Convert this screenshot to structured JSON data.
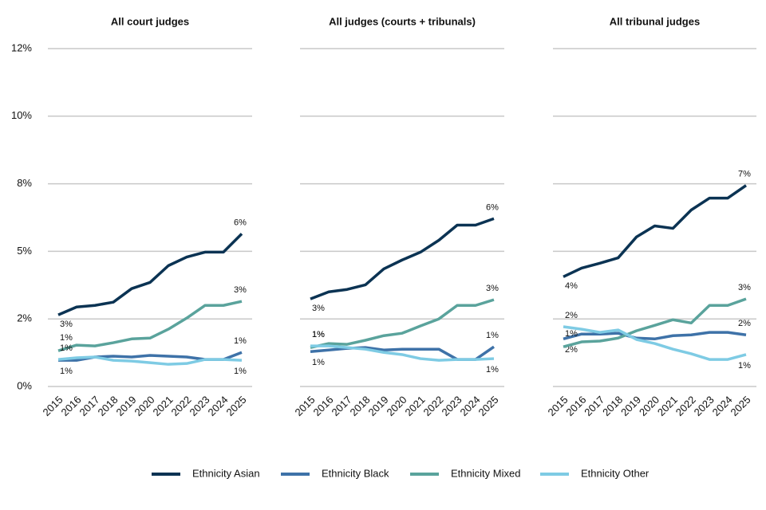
{
  "chart_data": [
    {
      "type": "line",
      "title": "All court judges",
      "categories": [
        "2015",
        "2016",
        "2017",
        "2018",
        "2019",
        "2020",
        "2021",
        "2022",
        "2023",
        "2024",
        "2025"
      ],
      "ylim": [
        0,
        12.5
      ],
      "yticks": [
        {
          "value": 0,
          "label": "0%"
        },
        {
          "value": 2.5,
          "label": "2%"
        },
        {
          "value": 5,
          "label": "5%"
        },
        {
          "value": 7.5,
          "label": "8%"
        },
        {
          "value": 10,
          "label": "10%"
        },
        {
          "value": 12.5,
          "label": "12%"
        }
      ],
      "grid": true,
      "series": [
        {
          "name": "Ethnicity Asian",
          "color": "#0b3353",
          "values": [
            2.65,
            2.94,
            3.0,
            3.12,
            3.62,
            3.85,
            4.47,
            4.79,
            4.97,
            4.97,
            5.65
          ],
          "value_labels": [
            "3%",
            null,
            null,
            null,
            null,
            null,
            null,
            null,
            null,
            null,
            "6%"
          ]
        },
        {
          "name": "Ethnicity Black",
          "color": "#3e72a8",
          "values": [
            0.97,
            0.97,
            1.09,
            1.12,
            1.09,
            1.15,
            1.12,
            1.09,
            1.0,
            1.0,
            1.26
          ],
          "value_labels": [
            "1%",
            null,
            null,
            null,
            null,
            null,
            null,
            null,
            null,
            null,
            "1%"
          ]
        },
        {
          "name": "Ethnicity Mixed",
          "color": "#5aa39c",
          "values": [
            1.32,
            1.53,
            1.5,
            1.62,
            1.76,
            1.79,
            2.12,
            2.53,
            3.0,
            3.0,
            3.15
          ],
          "value_labels": [
            "1%",
            null,
            null,
            null,
            null,
            null,
            null,
            null,
            null,
            null,
            "3%"
          ]
        },
        {
          "name": "Ethnicity Other",
          "color": "#7ecbe4",
          "values": [
            1.0,
            1.06,
            1.09,
            0.97,
            0.94,
            0.88,
            0.82,
            0.85,
            1.0,
            1.0,
            0.97
          ],
          "value_labels": [
            "1%",
            null,
            null,
            null,
            null,
            null,
            null,
            null,
            null,
            null,
            "1%"
          ]
        }
      ]
    },
    {
      "type": "line",
      "title": "All judges (courts + tribunals)",
      "categories": [
        "2015",
        "2016",
        "2017",
        "2018",
        "2019",
        "2020",
        "2021",
        "2022",
        "2023",
        "2024",
        "2025"
      ],
      "ylim": [
        0,
        12.5
      ],
      "yticks": [
        {
          "value": 0,
          "label": "0%"
        },
        {
          "value": 2.5,
          "label": "2%"
        },
        {
          "value": 5,
          "label": "5%"
        },
        {
          "value": 7.5,
          "label": "8%"
        },
        {
          "value": 10,
          "label": "10%"
        },
        {
          "value": 12.5,
          "label": "12%"
        }
      ],
      "grid": true,
      "series": [
        {
          "name": "Ethnicity Asian",
          "color": "#0b3353",
          "values": [
            3.24,
            3.5,
            3.59,
            3.76,
            4.35,
            4.68,
            4.97,
            5.41,
            5.97,
            5.97,
            6.21
          ],
          "value_labels": [
            "3%",
            null,
            null,
            null,
            null,
            null,
            null,
            null,
            null,
            null,
            "6%"
          ]
        },
        {
          "name": "Ethnicity Black",
          "color": "#3e72a8",
          "values": [
            1.29,
            1.35,
            1.41,
            1.44,
            1.35,
            1.38,
            1.38,
            1.38,
            1.0,
            1.0,
            1.47
          ],
          "value_labels": [
            "1%",
            null,
            null,
            null,
            null,
            null,
            null,
            null,
            null,
            null,
            "1%"
          ]
        },
        {
          "name": "Ethnicity Mixed",
          "color": "#5aa39c",
          "values": [
            1.44,
            1.59,
            1.56,
            1.71,
            1.88,
            1.97,
            2.24,
            2.5,
            3.0,
            3.0,
            3.21
          ],
          "value_labels": [
            "1%",
            null,
            null,
            null,
            null,
            null,
            null,
            null,
            null,
            null,
            "3%"
          ]
        },
        {
          "name": "Ethnicity Other",
          "color": "#7ecbe4",
          "values": [
            1.5,
            1.5,
            1.44,
            1.38,
            1.26,
            1.18,
            1.03,
            0.97,
            1.0,
            1.0,
            1.03
          ],
          "value_labels": [
            "1%",
            null,
            null,
            null,
            null,
            null,
            null,
            null,
            null,
            null,
            "1%"
          ]
        }
      ]
    },
    {
      "type": "line",
      "title": "All tribunal judges",
      "categories": [
        "2015",
        "2016",
        "2017",
        "2018",
        "2019",
        "2020",
        "2021",
        "2022",
        "2023",
        "2024",
        "2025"
      ],
      "ylim": [
        0,
        12.5
      ],
      "yticks": [
        {
          "value": 0,
          "label": "0%"
        },
        {
          "value": 2.5,
          "label": "2%"
        },
        {
          "value": 5,
          "label": "5%"
        },
        {
          "value": 7.5,
          "label": "8%"
        },
        {
          "value": 10,
          "label": "10%"
        },
        {
          "value": 12.5,
          "label": "12%"
        }
      ],
      "grid": true,
      "series": [
        {
          "name": "Ethnicity Asian",
          "color": "#0b3353",
          "values": [
            4.06,
            4.38,
            4.56,
            4.76,
            5.53,
            5.94,
            5.85,
            6.53,
            6.97,
            6.97,
            7.44
          ],
          "value_labels": [
            "4%",
            null,
            null,
            null,
            null,
            null,
            null,
            null,
            null,
            null,
            "7%"
          ]
        },
        {
          "name": "Ethnicity Black",
          "color": "#3e72a8",
          "values": [
            1.76,
            1.94,
            1.94,
            1.97,
            1.79,
            1.76,
            1.88,
            1.91,
            2.0,
            2.0,
            1.91
          ],
          "value_labels": [
            "2%",
            null,
            null,
            null,
            null,
            null,
            null,
            null,
            null,
            null,
            "2%"
          ]
        },
        {
          "name": "Ethnicity Mixed",
          "color": "#5aa39c",
          "values": [
            1.47,
            1.65,
            1.68,
            1.79,
            2.06,
            2.26,
            2.47,
            2.35,
            3.0,
            3.0,
            3.24
          ],
          "value_labels": [
            "1%",
            null,
            null,
            null,
            null,
            null,
            null,
            null,
            null,
            null,
            "3%"
          ]
        },
        {
          "name": "Ethnicity Other",
          "color": "#7ecbe4",
          "values": [
            2.21,
            2.12,
            2.0,
            2.09,
            1.74,
            1.59,
            1.38,
            1.21,
            1.0,
            1.0,
            1.18
          ],
          "value_labels": [
            "2%",
            null,
            null,
            null,
            null,
            null,
            null,
            null,
            null,
            null,
            "1%"
          ]
        }
      ]
    }
  ]
}
